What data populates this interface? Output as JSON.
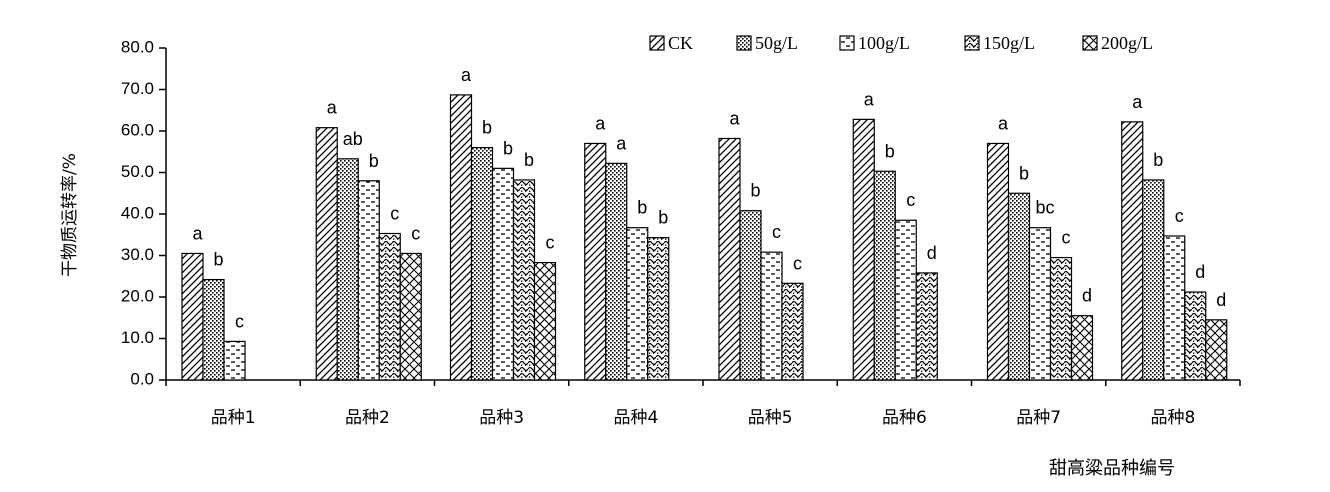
{
  "chart_data": {
    "type": "bar",
    "title": "",
    "xlabel": "甜高粱品种编号",
    "ylabel": "干物质运转率/%",
    "ylim": [
      0,
      80
    ],
    "yticks": [
      "0.0",
      "10.0",
      "20.0",
      "30.0",
      "40.0",
      "50.0",
      "60.0",
      "70.0",
      "80.0"
    ],
    "legend_position": "top-right",
    "grid": false,
    "categories": [
      "品种1",
      "品种2",
      "品种3",
      "品种4",
      "品种5",
      "品种6",
      "品种7",
      "品种8"
    ],
    "series": [
      {
        "name": "CK",
        "pattern": "diagonal-back",
        "values": [
          30.5,
          60.8,
          68.7,
          57.0,
          58.2,
          62.8,
          57.0,
          62.2
        ]
      },
      {
        "name": "50g/L",
        "pattern": "dots",
        "values": [
          24.2,
          53.3,
          56.0,
          52.2,
          40.8,
          50.3,
          45.0,
          48.2
        ]
      },
      {
        "name": "100g/L",
        "pattern": "dashes",
        "values": [
          9.3,
          48.0,
          51.0,
          36.7,
          30.8,
          38.5,
          36.7,
          34.7
        ]
      },
      {
        "name": "150g/L",
        "pattern": "waves",
        "values": [
          null,
          35.3,
          48.2,
          34.3,
          23.3,
          25.8,
          29.5,
          21.2
        ]
      },
      {
        "name": "200g/L",
        "pattern": "crosshatch",
        "values": [
          null,
          30.5,
          28.3,
          null,
          null,
          null,
          15.5,
          14.5
        ]
      }
    ],
    "significance_labels": [
      [
        "a",
        "b",
        "c",
        null,
        null
      ],
      [
        "a",
        "ab",
        "b",
        "c",
        "c"
      ],
      [
        "a",
        "b",
        "b",
        "b",
        "c"
      ],
      [
        "a",
        "a",
        "b",
        "b",
        null
      ],
      [
        "a",
        "b",
        "c",
        "c",
        null
      ],
      [
        "a",
        "b",
        "c",
        "d",
        null
      ],
      [
        "a",
        "b",
        "bc",
        "c",
        "d"
      ],
      [
        "a",
        "b",
        "c",
        "d",
        "d"
      ]
    ],
    "colors": {
      "bar_stroke": "#000000",
      "bar_fill": "#ffffff",
      "axis": "#000000",
      "axis_title": "#444444"
    }
  }
}
